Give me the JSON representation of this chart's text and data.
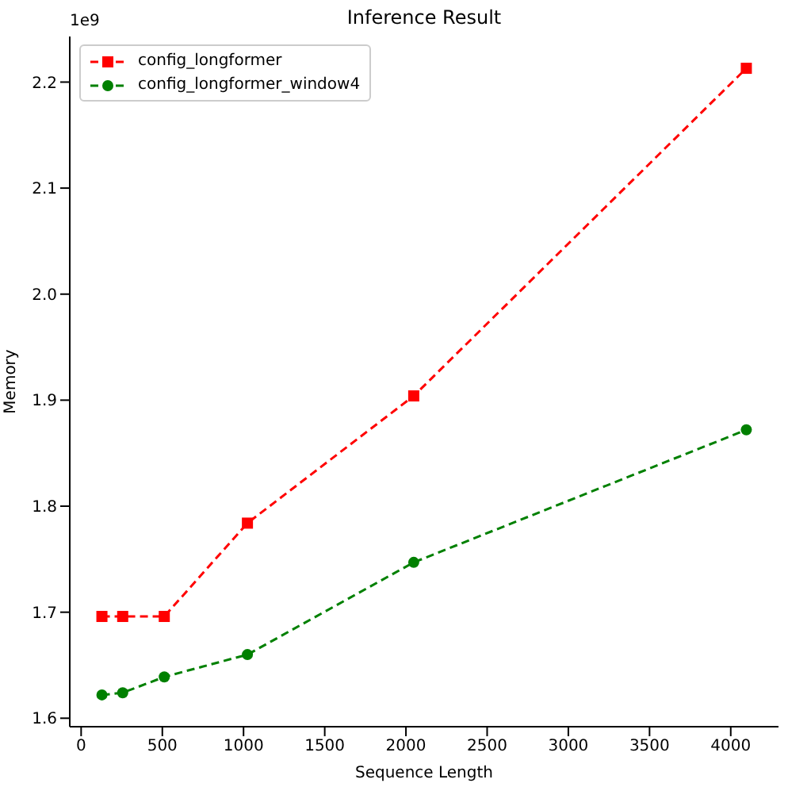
{
  "chart_data": {
    "type": "line",
    "title": "Inference Result",
    "xlabel": "Sequence Length",
    "ylabel": "Memory",
    "annotations": [
      "1e9"
    ],
    "xlim": [
      -70,
      4294
    ],
    "xticks": [
      0,
      500,
      1000,
      1500,
      2000,
      2500,
      3000,
      3500,
      4000
    ],
    "ylim": [
      1.592,
      2.243
    ],
    "yticks": [
      1.6,
      1.7,
      1.8,
      1.9,
      {
        "value": 2,
        "label": "2.0"
      },
      2.1,
      2.2
    ],
    "x": [
      128,
      256,
      512,
      1024,
      2048,
      4096
    ],
    "series": [
      {
        "name": "config_longformer",
        "color": "#ff0000",
        "marker": "square",
        "values": [
          1.696,
          1.696,
          1.696,
          1.784,
          1.904,
          2.213
        ]
      },
      {
        "name": "config_longformer_window4",
        "color": "#008000",
        "marker": "circle",
        "values": [
          1.622,
          1.624,
          1.639,
          1.66,
          1.747,
          1.872
        ]
      }
    ],
    "line_style": "dashed",
    "legend": "top left"
  }
}
